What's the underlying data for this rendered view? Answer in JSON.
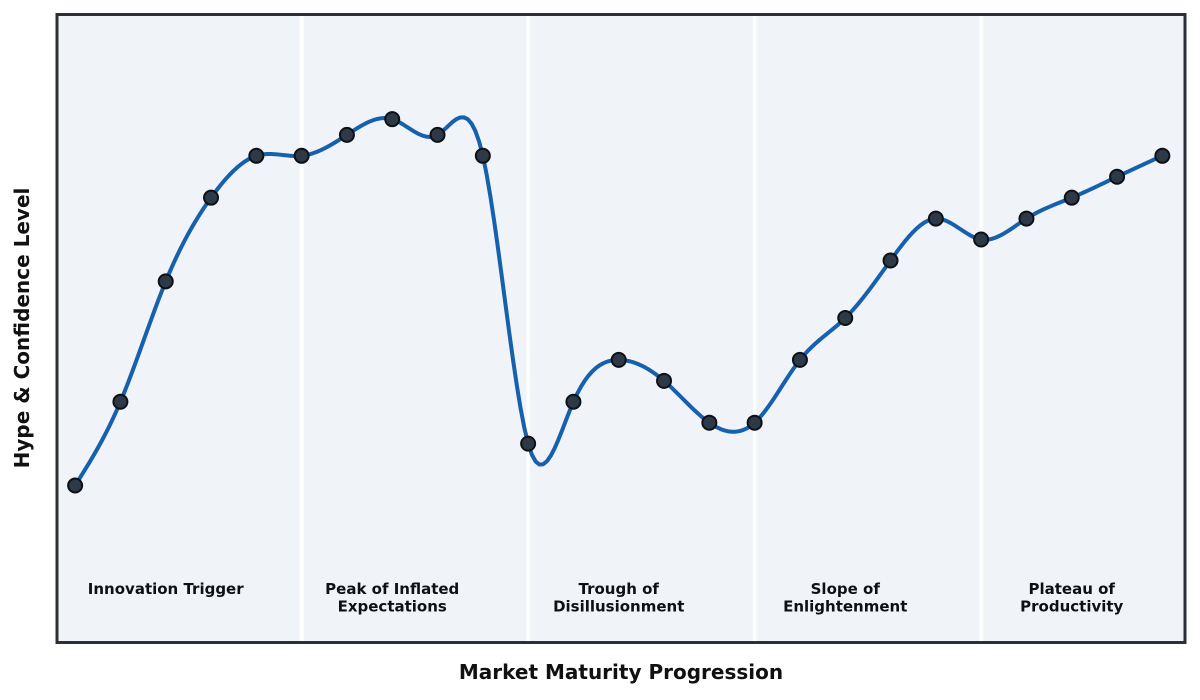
{
  "chart_data": {
    "type": "line",
    "title": "",
    "xlabel": "Market Maturity Progression",
    "ylabel": "Hype & Confidence Level",
    "x": [
      0,
      1,
      2,
      3,
      4,
      5,
      6,
      7,
      8,
      9,
      10,
      11,
      12,
      13,
      14,
      15,
      16,
      17,
      18,
      19,
      20,
      21,
      22,
      23,
      24
    ],
    "series": [
      {
        "name": "Hype & Confidence Level",
        "values": [
          30,
          46,
          69,
          85,
          93,
          93,
          97,
          100,
          97,
          93,
          38,
          46,
          54,
          50,
          42,
          42,
          54,
          62,
          73,
          81,
          77,
          81,
          85,
          89,
          93
        ]
      }
    ],
    "xlim": [
      -0.4,
      24.5
    ],
    "ylim": [
      0,
      120
    ],
    "grid": false,
    "legend": "none",
    "ticks": "none",
    "curve": "cubic-spline-interpolated",
    "markers": "filled-circles-on-data-points",
    "phases": [
      {
        "label_lines": [
          "Innovation Trigger"
        ],
        "start": -0.4,
        "end": 5,
        "label_x": 2
      },
      {
        "label_lines": [
          "Peak of Inflated",
          "Expectations"
        ],
        "start": 5,
        "end": 10,
        "label_x": 7
      },
      {
        "label_lines": [
          "Trough of",
          "Disillusionment"
        ],
        "start": 10,
        "end": 15,
        "label_x": 12
      },
      {
        "label_lines": [
          "Slope of",
          "Enlightenment"
        ],
        "start": 15,
        "end": 20,
        "label_x": 17
      },
      {
        "label_lines": [
          "Plateau of",
          "Productivity"
        ],
        "start": 20,
        "end": 24.5,
        "label_x": 22
      }
    ],
    "colors": {
      "line": "#1760ae",
      "marker_fill": "#2e3947",
      "marker_edge": "#0d1117",
      "plot_bg": "#f0f4f8",
      "phase_divider": "#ffffff",
      "spine": "#2b2f36",
      "label_text": "#0e1013",
      "outer_bg": "#ffffff"
    }
  }
}
